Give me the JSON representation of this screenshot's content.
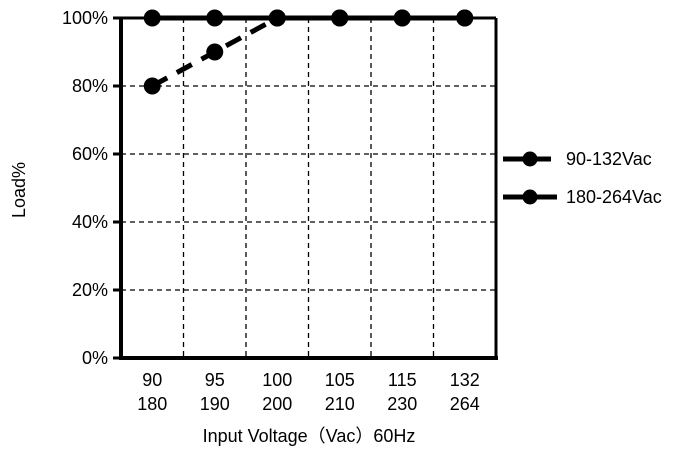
{
  "chart_data": {
    "type": "line",
    "xlabel": "Input Voltage（Vac）60Hz",
    "ylabel": "Load%",
    "ylim": [
      0,
      100
    ],
    "yticks": [
      "0%",
      "20%",
      "40%",
      "60%",
      "80%",
      "100%"
    ],
    "categories": [
      {
        "top": "90",
        "bottom": "180"
      },
      {
        "top": "95",
        "bottom": "190"
      },
      {
        "top": "100",
        "bottom": "200"
      },
      {
        "top": "105",
        "bottom": "210"
      },
      {
        "top": "115",
        "bottom": "230"
      },
      {
        "top": "132",
        "bottom": "264"
      }
    ],
    "series": [
      {
        "name": "90-132Vac",
        "style": "dashed",
        "values": [
          80,
          90,
          100,
          100,
          100,
          100
        ]
      },
      {
        "name": "180-264Vac",
        "style": "solid",
        "values": [
          100,
          100,
          100,
          100,
          100,
          100
        ]
      }
    ],
    "grid": true,
    "legend_position": "right",
    "colors": {
      "line": "#000000",
      "grid": "#000000"
    }
  }
}
